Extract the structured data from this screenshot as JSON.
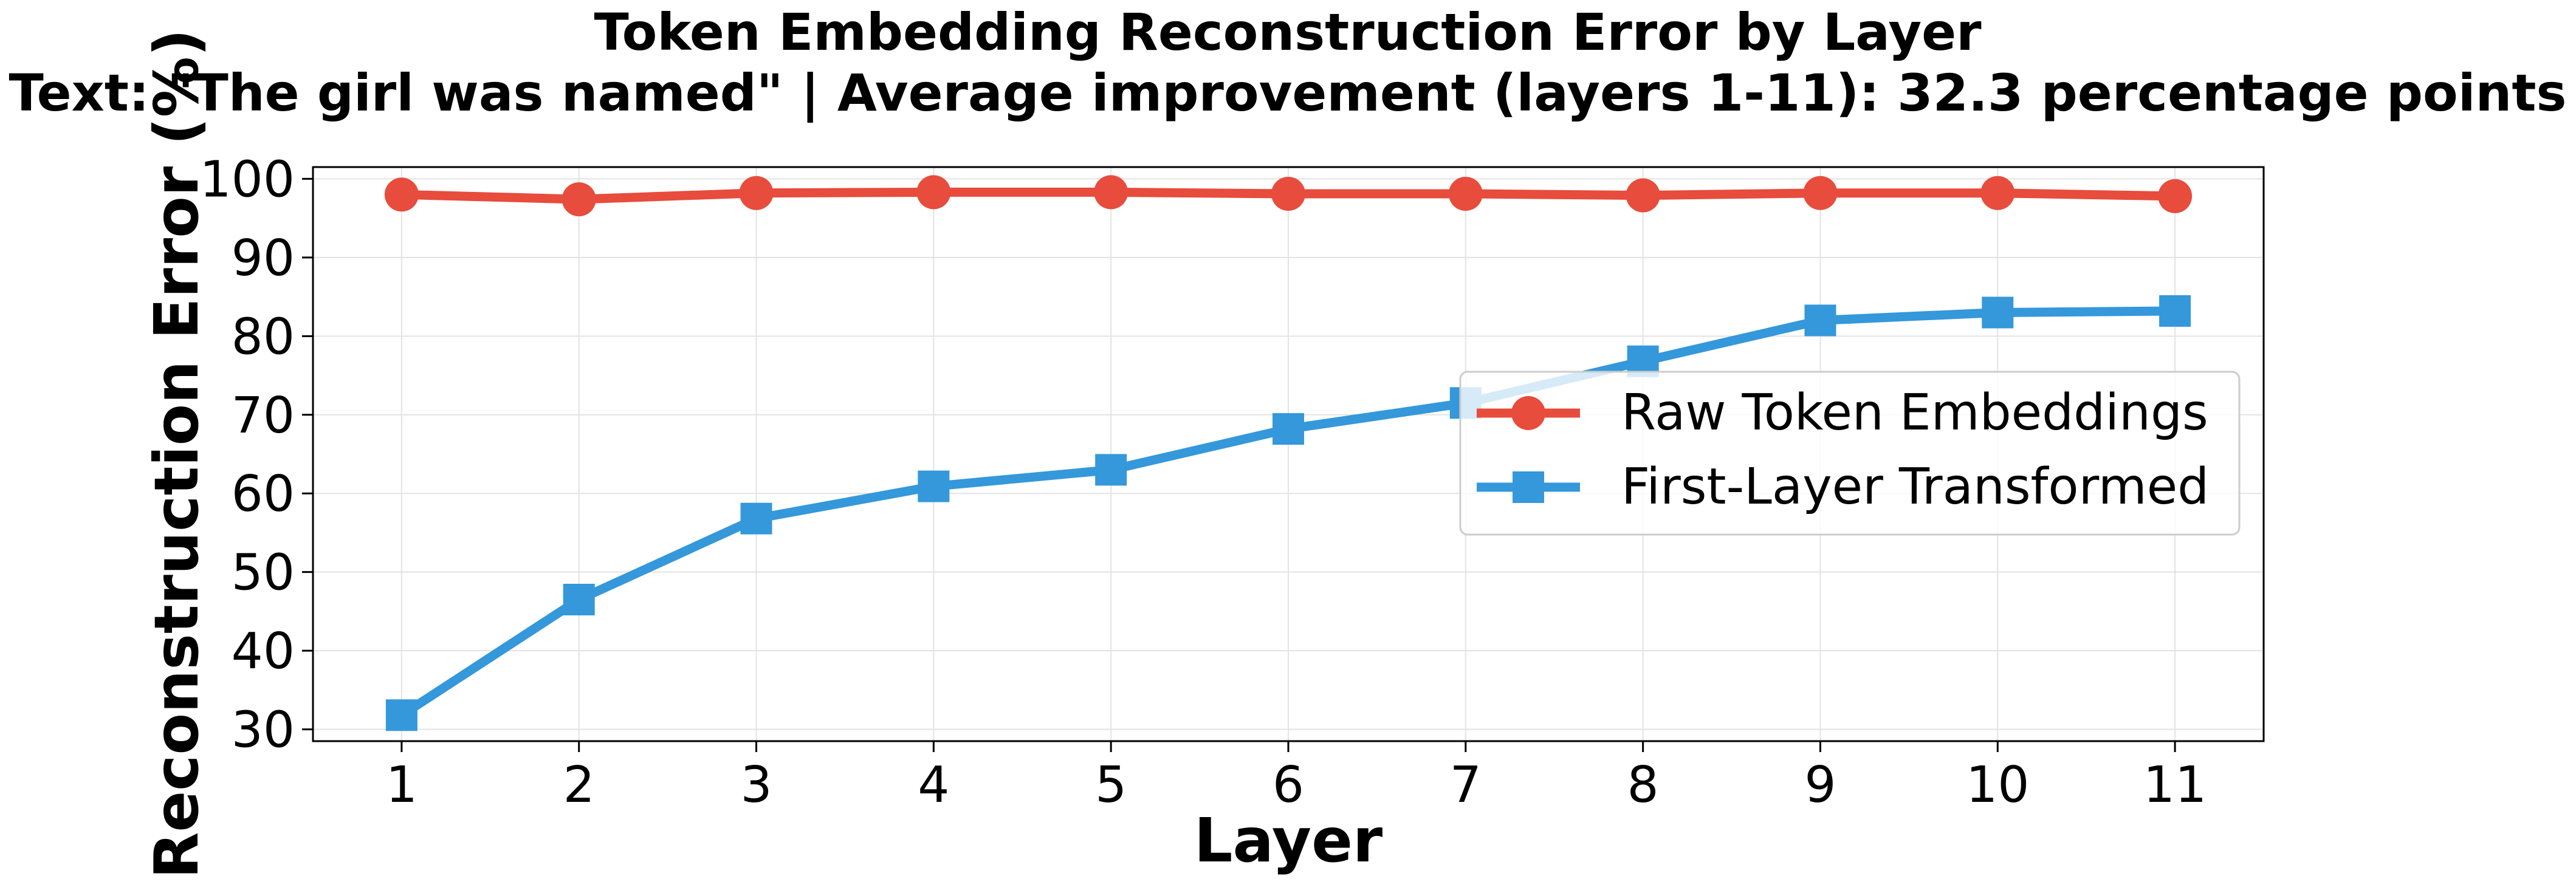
{
  "chart_data": {
    "type": "line",
    "title": "Token Embedding Reconstruction Error by Layer",
    "subtitle": "Text: \"The girl was named\" | Average improvement (layers 1-11): 32.3 percentage points",
    "xlabel": "Layer",
    "ylabel": "Reconstruction Error (%)",
    "x": [
      1,
      2,
      3,
      4,
      5,
      6,
      7,
      8,
      9,
      10,
      11
    ],
    "xlim": [
      0.5,
      11.5
    ],
    "ylim": [
      28.5,
      101.5
    ],
    "yticks": [
      30,
      40,
      50,
      60,
      70,
      80,
      90,
      100
    ],
    "grid": true,
    "legend_position": "center-right",
    "series": [
      {
        "name": "Raw Token Embeddings",
        "color": "#e74c3c",
        "marker": "circle",
        "values": [
          98.0,
          97.4,
          98.2,
          98.3,
          98.3,
          98.1,
          98.1,
          97.9,
          98.2,
          98.2,
          97.8
        ]
      },
      {
        "name": "First-Layer Transformed",
        "color": "#3498db",
        "marker": "square",
        "values": [
          31.8,
          46.5,
          56.8,
          60.9,
          63.0,
          68.2,
          71.5,
          76.8,
          82.0,
          83.0,
          83.2
        ]
      }
    ]
  }
}
